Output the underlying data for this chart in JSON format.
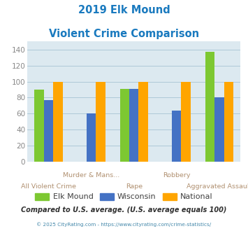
{
  "title_line1": "2019 Elk Mound",
  "title_line2": "Violent Crime Comparison",
  "categories_top": [
    "",
    "Murder & Mans...",
    "",
    "Robbery",
    ""
  ],
  "categories_bot": [
    "All Violent Crime",
    "",
    "Rape",
    "",
    "Aggravated Assault"
  ],
  "elk_mound": [
    90,
    0,
    91,
    0,
    137
  ],
  "wisconsin": [
    77,
    60,
    91,
    64,
    80
  ],
  "national": [
    100,
    100,
    100,
    100,
    100
  ],
  "elk_mound_color": "#7dc832",
  "wisconsin_color": "#4472c4",
  "national_color": "#ffa500",
  "title_color": "#1a7abf",
  "plot_bg_color": "#dce9f0",
  "xlabel_color": "#b09070",
  "legend_label_color": "#404040",
  "footer_text": "Compared to U.S. average. (U.S. average equals 100)",
  "copyright_text": "© 2025 CityRating.com - https://www.cityrating.com/crime-statistics/",
  "footer_color": "#303030",
  "copyright_color": "#4488aa",
  "bar_width": 0.22,
  "grid_color": "#aec8d8",
  "ytick_color": "#888888"
}
